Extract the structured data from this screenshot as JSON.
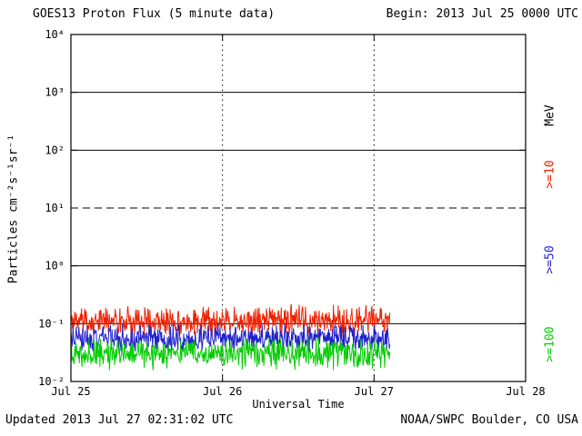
{
  "header": {
    "title": "GOES13 Proton Flux (5 minute data)",
    "begin": "Begin: 2013 Jul 25 0000 UTC"
  },
  "footer": {
    "updated": "Updated 2013 Jul 27 02:31:02 UTC",
    "source": "NOAA/SWPC Boulder, CO USA"
  },
  "chart_data": {
    "type": "line",
    "title": "GOES13 Proton Flux (5 minute data)",
    "xlabel": "Universal Time",
    "ylabel": "Particles cm⁻²s⁻¹sr⁻¹",
    "x_range_days": 3,
    "x_ticks": [
      {
        "day": 0,
        "label": "Jul 25"
      },
      {
        "day": 1,
        "label": "Jul 26"
      },
      {
        "day": 2,
        "label": "Jul 27"
      },
      {
        "day": 3,
        "label": "Jul 28"
      }
    ],
    "y_log_range": [
      -2,
      4
    ],
    "y_ticks": [
      {
        "exp": 4,
        "label": "10⁴"
      },
      {
        "exp": 3,
        "label": "10³"
      },
      {
        "exp": 2,
        "label": "10²"
      },
      {
        "exp": 1,
        "label": "10¹"
      },
      {
        "exp": 0,
        "label": "10⁰"
      },
      {
        "exp": -1,
        "label": "10⁻¹"
      },
      {
        "exp": -2,
        "label": "10⁻²"
      }
    ],
    "grid": {
      "solid_decades": [
        3,
        2,
        0,
        -1
      ],
      "dashed_decades": [
        1
      ],
      "vertical_days": [
        1,
        2
      ]
    },
    "legend_position": "right",
    "right_labels": [
      {
        "key": "mev",
        "text": "MeV",
        "color": "#000000"
      },
      {
        "key": "ge10",
        "text": ">=10",
        "color": "#ee2200"
      },
      {
        "key": "ge50",
        "text": ">=50",
        "color": "#2222cc"
      },
      {
        "key": "ge100",
        "text": ">=100",
        "color": "#00cc00"
      }
    ],
    "series": [
      {
        "key": "ge10",
        "name": ">=10 MeV",
        "color": "#ee2200",
        "points_per_day": 288,
        "end_day": 2.104,
        "log10_center": -0.95,
        "log10_halfspread": 0.3,
        "seed": 11,
        "approx_flux_range": [
          0.06,
          0.22
        ]
      },
      {
        "key": "ge50",
        "name": ">=50 MeV",
        "color": "#2222cc",
        "points_per_day": 288,
        "end_day": 2.104,
        "log10_center": -1.25,
        "log10_halfspread": 0.28,
        "seed": 22,
        "approx_flux_range": [
          0.03,
          0.1
        ]
      },
      {
        "key": "ge100",
        "name": ">=100 MeV",
        "color": "#00cc00",
        "points_per_day": 288,
        "end_day": 2.104,
        "log10_center": -1.52,
        "log10_halfspread": 0.3,
        "seed": 33,
        "approx_flux_range": [
          0.015,
          0.06
        ]
      }
    ]
  }
}
